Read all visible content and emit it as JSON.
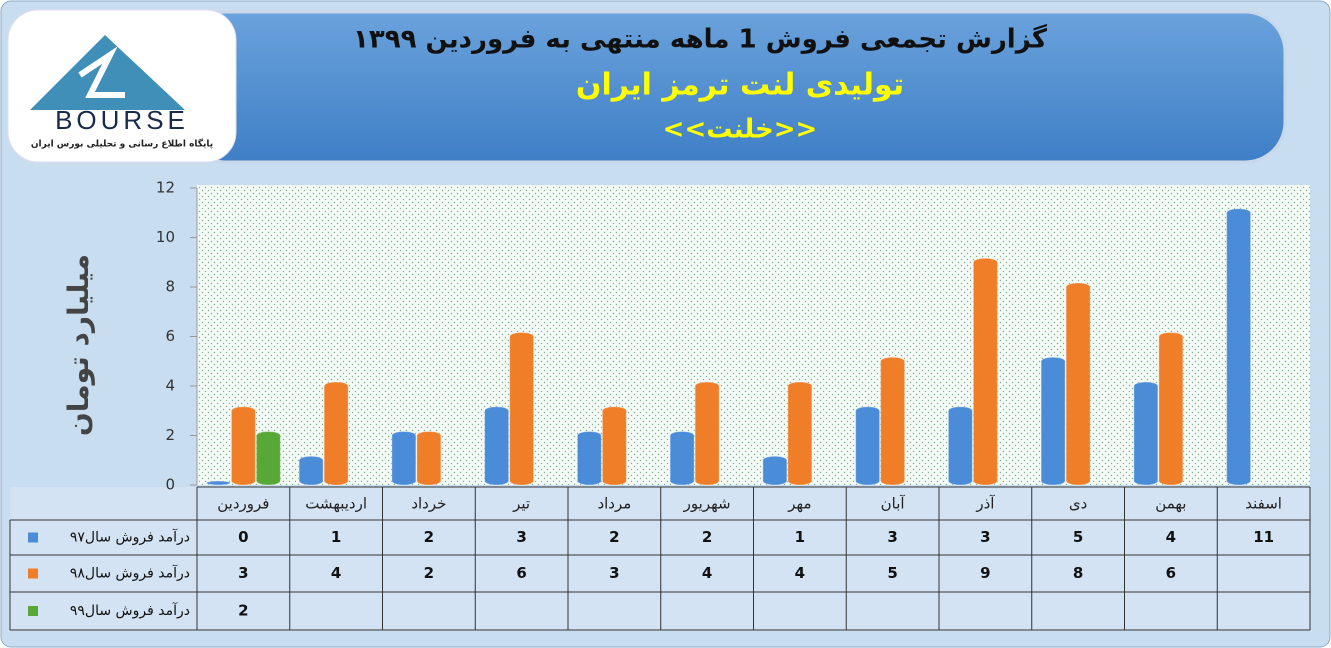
{
  "logo": {
    "text": "BOURSE",
    "tagline": "پایگاه اطلاع رسانی و تحلیلی بورس ایران"
  },
  "chart_data": {
    "type": "bar",
    "title": "گزارش تجمعی فروش  1 ماهه منتهی به فروردین ۱۳۹۹",
    "subtitle": "تولیدی لنت ترمز ایران",
    "symbol": "<<خلنت>>",
    "y_label": "میلیارد تومان",
    "categories": [
      "فروردین",
      "اردیبهشت",
      "خرداد",
      "تیر",
      "مرداد",
      "شهریور",
      "مهر",
      "آبان",
      "آذر",
      "دی",
      "بهمن",
      "اسفند"
    ],
    "series": [
      {
        "name": "درآمد فروش سال۹۷",
        "color": "#4a8cd8",
        "values": [
          0,
          1,
          2,
          3,
          2,
          2,
          1,
          3,
          3,
          5,
          4,
          11
        ]
      },
      {
        "name": "درآمد فروش سال۹۸",
        "color": "#f07d28",
        "values": [
          3,
          4,
          2,
          6,
          3,
          4,
          4,
          5,
          9,
          8,
          6,
          null
        ]
      },
      {
        "name": "درآمد فروش سال۹۹",
        "color": "#58a838",
        "values": [
          2,
          null,
          null,
          null,
          null,
          null,
          null,
          null,
          null,
          null,
          null,
          null
        ]
      }
    ],
    "ylim": [
      0,
      12
    ],
    "yticks": [
      0,
      2,
      4,
      6,
      8,
      10,
      12
    ],
    "grid": false
  }
}
